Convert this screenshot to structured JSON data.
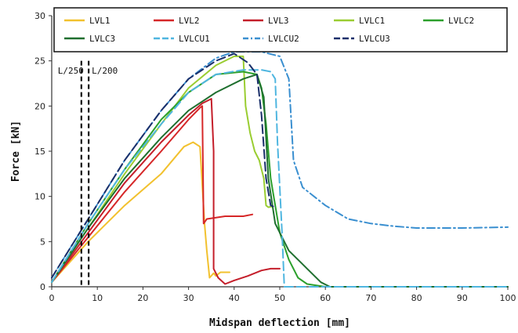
{
  "chart_data": {
    "type": "line",
    "title": "",
    "xlabel": "Midspan deflection [mm]",
    "ylabel": "Force [kN]",
    "xlim": [
      0,
      100
    ],
    "ylim": [
      0,
      30
    ],
    "xticks": [
      0,
      10,
      20,
      30,
      40,
      50,
      60,
      70,
      80,
      90,
      100
    ],
    "yticks": [
      0,
      5,
      10,
      15,
      20,
      25,
      30
    ],
    "grid": false,
    "legend_position": "top",
    "annotations": [
      {
        "text": "L/250",
        "x": 6.5
      },
      {
        "text": "L/200",
        "x": 8.1
      }
    ],
    "series": [
      {
        "name": "LVL1",
        "color": "#f2c12e",
        "dash": "solid",
        "points": [
          [
            0,
            0.5
          ],
          [
            8,
            5
          ],
          [
            16,
            9
          ],
          [
            24,
            12.5
          ],
          [
            29,
            15.5
          ],
          [
            31,
            16
          ],
          [
            32.5,
            15.5
          ],
          [
            33.5,
            7
          ],
          [
            34,
            4
          ],
          [
            34.6,
            1
          ],
          [
            35.5,
            1.5
          ],
          [
            36,
            1.2
          ],
          [
            37,
            1.6
          ],
          [
            39,
            1.6
          ]
        ]
      },
      {
        "name": "LVL2",
        "color": "#d62728",
        "dash": "solid",
        "points": [
          [
            0,
            0.5
          ],
          [
            8,
            5.5
          ],
          [
            16,
            10.5
          ],
          [
            24,
            15
          ],
          [
            30,
            18.5
          ],
          [
            32.5,
            19.8
          ],
          [
            33,
            20
          ],
          [
            33.3,
            7
          ],
          [
            34,
            7.5
          ],
          [
            38,
            7.8
          ],
          [
            42,
            7.8
          ],
          [
            44,
            8
          ]
        ]
      },
      {
        "name": "LVL3",
        "color": "#c41e2a",
        "dash": "solid",
        "points": [
          [
            0,
            0.5
          ],
          [
            8,
            6
          ],
          [
            16,
            11.5
          ],
          [
            24,
            16
          ],
          [
            30,
            19
          ],
          [
            33,
            20.3
          ],
          [
            35,
            20.8
          ],
          [
            35.5,
            15
          ],
          [
            35.5,
            2
          ],
          [
            36.5,
            1
          ],
          [
            38,
            0.3
          ],
          [
            40,
            0.7
          ],
          [
            43,
            1.2
          ],
          [
            46,
            1.8
          ],
          [
            48,
            2
          ],
          [
            50,
            2
          ]
        ]
      },
      {
        "name": "LVLC1",
        "color": "#9acd32",
        "dash": "solid",
        "points": [
          [
            0,
            0.5
          ],
          [
            8,
            6.5
          ],
          [
            16,
            12.5
          ],
          [
            24,
            18
          ],
          [
            30,
            22
          ],
          [
            36,
            24.5
          ],
          [
            40,
            25.5
          ],
          [
            42,
            25.5
          ],
          [
            42.5,
            20
          ],
          [
            43.5,
            17
          ],
          [
            44.5,
            15
          ],
          [
            45.5,
            14
          ],
          [
            46.5,
            12
          ],
          [
            47,
            9
          ],
          [
            47.5,
            8.8
          ],
          [
            48.5,
            8.9
          ]
        ]
      },
      {
        "name": "LVLC2",
        "color": "#2ca02c",
        "dash": "solid",
        "points": [
          [
            0,
            0.5
          ],
          [
            8,
            7
          ],
          [
            16,
            13
          ],
          [
            24,
            18.5
          ],
          [
            30,
            21.5
          ],
          [
            36,
            23.5
          ],
          [
            42,
            23.8
          ],
          [
            45,
            23.5
          ],
          [
            46,
            22
          ],
          [
            47,
            18
          ],
          [
            48,
            12
          ],
          [
            50,
            6
          ],
          [
            52,
            3
          ],
          [
            54,
            1
          ],
          [
            56,
            0.3
          ],
          [
            60,
            0
          ],
          [
            100,
            0
          ]
        ]
      },
      {
        "name": "LVLC3",
        "color": "#1f6f2f",
        "dash": "solid",
        "points": [
          [
            0,
            0.5
          ],
          [
            8,
            6.5
          ],
          [
            16,
            12
          ],
          [
            24,
            16.5
          ],
          [
            30,
            19.5
          ],
          [
            36,
            21.5
          ],
          [
            42,
            23
          ],
          [
            45,
            23.5
          ],
          [
            46.5,
            21
          ],
          [
            47.5,
            12
          ],
          [
            49,
            7
          ],
          [
            52,
            4
          ],
          [
            56,
            2
          ],
          [
            59,
            0.5
          ],
          [
            61,
            0
          ],
          [
            100,
            0
          ]
        ]
      },
      {
        "name": "LVLCU1",
        "color": "#4fb6e0",
        "dash": "longdash",
        "points": [
          [
            0,
            0.5
          ],
          [
            8,
            7
          ],
          [
            16,
            13
          ],
          [
            24,
            18
          ],
          [
            30,
            21.5
          ],
          [
            36,
            23.5
          ],
          [
            42,
            24
          ],
          [
            46,
            24
          ],
          [
            48,
            23.8
          ],
          [
            49,
            23
          ],
          [
            49.5,
            16
          ],
          [
            50.5,
            6
          ],
          [
            51,
            0
          ],
          [
            100,
            0
          ]
        ]
      },
      {
        "name": "LVLCU2",
        "color": "#3a8fd0",
        "dash": "dashdot",
        "points": [
          [
            0,
            1
          ],
          [
            8,
            7.5
          ],
          [
            16,
            14
          ],
          [
            24,
            19.5
          ],
          [
            30,
            23
          ],
          [
            36,
            25.3
          ],
          [
            40,
            26
          ],
          [
            46,
            26
          ],
          [
            50,
            25.5
          ],
          [
            52,
            23
          ],
          [
            53,
            14
          ],
          [
            55,
            11
          ],
          [
            60,
            9
          ],
          [
            65,
            7.5
          ],
          [
            70,
            7
          ],
          [
            75,
            6.7
          ],
          [
            80,
            6.5
          ],
          [
            90,
            6.5
          ],
          [
            100,
            6.6
          ]
        ]
      },
      {
        "name": "LVLCU3",
        "color": "#1a2f6a",
        "dash": "longdash",
        "points": [
          [
            0,
            1
          ],
          [
            8,
            7.5
          ],
          [
            16,
            14
          ],
          [
            24,
            19.5
          ],
          [
            30,
            23
          ],
          [
            36,
            25
          ],
          [
            40,
            25.8
          ],
          [
            43,
            24.8
          ],
          [
            45,
            23.5
          ],
          [
            46,
            19
          ],
          [
            47,
            12
          ],
          [
            48,
            9
          ],
          [
            49,
            8.8
          ]
        ]
      }
    ]
  }
}
